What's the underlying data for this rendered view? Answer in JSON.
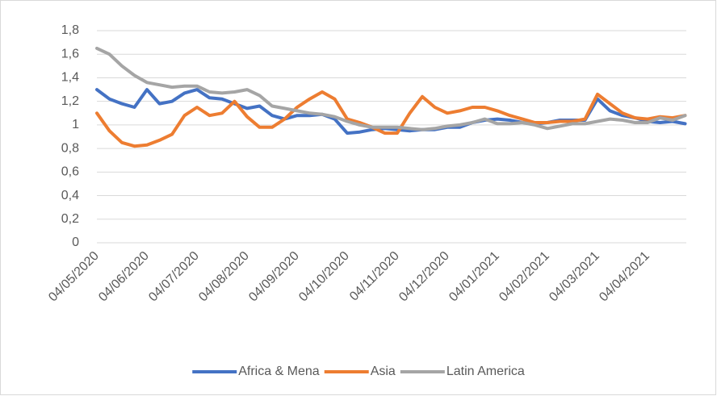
{
  "chart_data": {
    "type": "line",
    "categories": [
      "04/05/2020",
      null,
      null,
      null,
      "04/06/2020",
      null,
      null,
      null,
      "04/07/2020",
      null,
      null,
      null,
      "04/08/2020",
      null,
      null,
      null,
      "04/09/2020",
      null,
      null,
      null,
      "04/10/2020",
      null,
      null,
      null,
      "04/11/2020",
      null,
      null,
      null,
      "04/12/2020",
      null,
      null,
      null,
      "04/01/2021",
      null,
      null,
      null,
      "04/02/2021",
      null,
      null,
      null,
      "04/03/2021",
      null,
      null,
      null,
      "04/04/2021",
      null,
      null,
      null
    ],
    "series": [
      {
        "name": "Africa & Mena",
        "color": "#4472c4",
        "values": [
          1.3,
          1.22,
          1.18,
          1.15,
          1.3,
          1.18,
          1.2,
          1.27,
          1.3,
          1.23,
          1.22,
          1.18,
          1.14,
          1.16,
          1.08,
          1.05,
          1.08,
          1.08,
          1.09,
          1.05,
          0.93,
          0.94,
          0.96,
          0.97,
          0.96,
          0.95,
          0.96,
          0.96,
          0.98,
          0.98,
          1.02,
          1.04,
          1.05,
          1.04,
          1.02,
          1.01,
          1.02,
          1.04,
          1.04,
          1.04,
          1.22,
          1.12,
          1.08,
          1.06,
          1.03,
          1.02,
          1.03,
          1.01
        ]
      },
      {
        "name": "Asia",
        "color": "#ed7d31",
        "values": [
          1.1,
          0.95,
          0.85,
          0.82,
          0.83,
          0.87,
          0.92,
          1.08,
          1.15,
          1.08,
          1.1,
          1.2,
          1.07,
          0.98,
          0.98,
          1.05,
          1.15,
          1.22,
          1.28,
          1.22,
          1.05,
          1.02,
          0.98,
          0.93,
          0.93,
          1.1,
          1.24,
          1.15,
          1.1,
          1.12,
          1.15,
          1.15,
          1.12,
          1.08,
          1.05,
          1.02,
          1.02,
          1.03,
          1.03,
          1.05,
          1.26,
          1.18,
          1.1,
          1.06,
          1.05,
          1.07,
          1.06,
          1.08
        ]
      },
      {
        "name": "Latin America",
        "color": "#a5a5a5",
        "values": [
          1.65,
          1.6,
          1.5,
          1.42,
          1.36,
          1.34,
          1.32,
          1.33,
          1.33,
          1.28,
          1.27,
          1.28,
          1.3,
          1.25,
          1.16,
          1.14,
          1.12,
          1.1,
          1.09,
          1.07,
          1.03,
          1.0,
          0.98,
          0.98,
          0.98,
          0.97,
          0.96,
          0.97,
          0.99,
          1.0,
          1.02,
          1.05,
          1.01,
          1.01,
          1.02,
          1.0,
          0.97,
          0.99,
          1.01,
          1.01,
          1.03,
          1.05,
          1.04,
          1.02,
          1.02,
          1.06,
          1.04,
          1.08
        ]
      }
    ],
    "ylim": [
      0,
      1.8
    ],
    "yticks": [
      0,
      {
        "value": 0.2,
        "label": "0,2"
      },
      {
        "value": 0.4,
        "label": "0,4"
      },
      {
        "value": 0.6,
        "label": "0,6"
      },
      {
        "value": 0.8,
        "label": "0,8"
      },
      1,
      {
        "value": 1.2,
        "label": "1,2"
      },
      {
        "value": 1.4,
        "label": "1,4"
      },
      {
        "value": 1.6,
        "label": "1,6"
      },
      {
        "value": 1.8,
        "label": "1,8"
      }
    ],
    "grid": true,
    "legend": "bottom"
  }
}
